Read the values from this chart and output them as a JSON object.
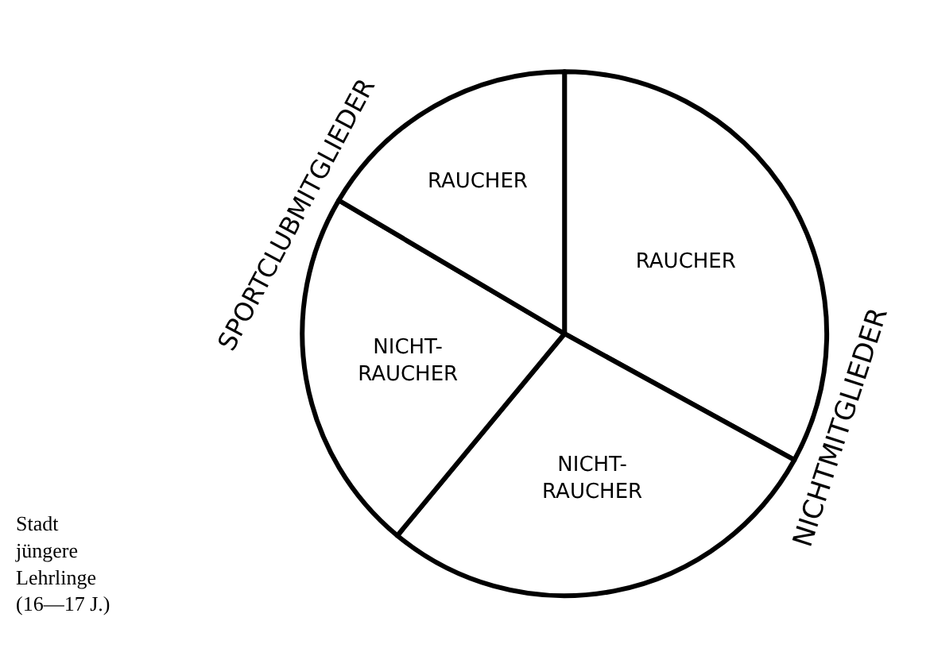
{
  "chart_data": {
    "type": "pie",
    "categories": [
      "RAUCHER",
      "NICHT-\nRAUCHER",
      "NICHT-\nRAUCHER",
      "RAUCHER"
    ],
    "values": [
      33,
      28,
      22.5,
      16.5
    ],
    "colors": [
      "#ffffff",
      "#ffffff",
      "#ffffff",
      "#ffffff"
    ],
    "legend": false,
    "annotations": [
      "NICHTMITGLIEDER",
      "SPORTCLUBMITGLIEDER",
      "Stadt\njüngere\nLehrlinge\n(16—17 J.)"
    ]
  }
}
